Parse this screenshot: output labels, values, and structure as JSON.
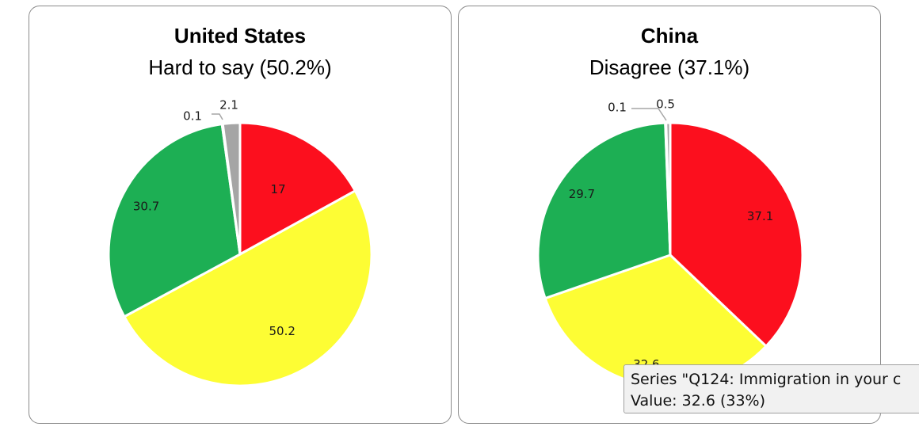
{
  "chart_data": [
    {
      "type": "pie",
      "title": "United States",
      "subtitle": "Hard to say (50.2%)",
      "slices": [
        {
          "label": "17",
          "value": 17.0,
          "color": "#fc0f1e"
        },
        {
          "label": "50.2",
          "value": 50.2,
          "color": "#fdfd34"
        },
        {
          "label": "30.7",
          "value": 30.7,
          "color": "#1daf54"
        },
        {
          "label": "0.1",
          "value": 0.1,
          "color": "#d8d8d8"
        },
        {
          "label": "2.1",
          "value": 2.1,
          "color": "#a5a5a5"
        }
      ]
    },
    {
      "type": "pie",
      "title": "China",
      "subtitle": "Disagree (37.1%)",
      "slices": [
        {
          "label": "37.1",
          "value": 37.1,
          "color": "#fc0f1e"
        },
        {
          "label": "32.6",
          "value": 32.6,
          "color": "#fdfd34"
        },
        {
          "label": "29.7",
          "value": 29.7,
          "color": "#1daf54"
        },
        {
          "label": "0.1",
          "value": 0.1,
          "color": "#d8d8d8"
        },
        {
          "label": "0.5",
          "value": 0.5,
          "color": "#a5a5a5"
        }
      ]
    }
  ],
  "tooltip": {
    "line1": "Series \"Q124: Immigration in your c",
    "line2": "Value: 32.6 (33%)"
  }
}
